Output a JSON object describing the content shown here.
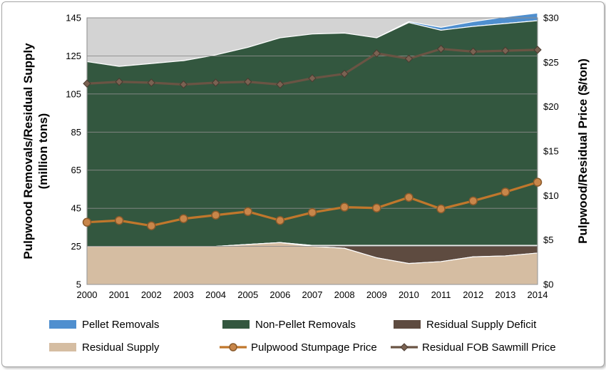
{
  "chart_data": {
    "type": "area",
    "x": [
      2000,
      2001,
      2002,
      2003,
      2004,
      2005,
      2006,
      2007,
      2008,
      2009,
      2010,
      2011,
      2012,
      2013,
      2014
    ],
    "x_tick_labels": [
      "2000",
      "2001",
      "2002",
      "2003",
      "2004",
      "2005",
      "2006",
      "2007",
      "2008",
      "2009",
      "2010",
      "2011",
      "2012",
      "2013",
      "2014"
    ],
    "ylabel": "Pulpwood Removals/Residual Supply (million tons)",
    "ylim": [
      5,
      145
    ],
    "y_ticks": [
      5,
      25,
      45,
      65,
      85,
      105,
      125,
      145
    ],
    "y_tick_labels": [
      "5",
      "25",
      "45",
      "65",
      "85",
      "105",
      "125",
      "145"
    ],
    "y2label": "Pulpwood/Residual Price ($/ton)",
    "y2lim": [
      0,
      30
    ],
    "y2_ticks": [
      0,
      5,
      10,
      15,
      20,
      25,
      30
    ],
    "y2_tick_labels": [
      "$0",
      "$5",
      "$10",
      "$15",
      "$20",
      "$25",
      "$30"
    ],
    "grid": true,
    "legend_position": "bottom",
    "colors": {
      "plot_background": "#d3d3d3",
      "pellet_removals": "#4f8fcf",
      "non_pellet_removals": "#33573f",
      "residual_supply_deficit": "#5e4b40",
      "residual_supply": "#d5bda2",
      "pulpwood_stumpage_price": "#c0772c",
      "pulpwood_marker": "#c8864a",
      "residual_fob_price": "#6a5444"
    },
    "series": [
      {
        "name": "Pellet Removals",
        "type": "area",
        "axis": "left",
        "values": [
          0,
          0,
          0,
          0,
          0,
          0,
          0,
          0,
          0,
          0,
          0.5,
          1.5,
          2.5,
          3.5,
          4.0
        ]
      },
      {
        "name": "Non-Pellet Removals",
        "type": "area",
        "axis": "left",
        "values": [
          97,
          94.5,
          96,
          97.5,
          100.5,
          103.5,
          107.5,
          111,
          111.5,
          109,
          117,
          113,
          115,
          116.5,
          118
        ]
      },
      {
        "name": "Residual Supply Deficit",
        "type": "area",
        "axis": "left",
        "values": [
          0,
          0,
          0,
          0,
          0,
          0,
          0,
          0.5,
          1.5,
          6.5,
          9.5,
          8.5,
          6.0,
          5.5,
          4.0
        ]
      },
      {
        "name": "Residual Supply",
        "type": "area",
        "axis": "left",
        "values": [
          25,
          25,
          25,
          25,
          25,
          26,
          27,
          25,
          24,
          19,
          16,
          17,
          19.5,
          20,
          21.5
        ]
      },
      {
        "name": "Pulpwood Stumpage Price",
        "type": "line",
        "axis": "right",
        "values": [
          7.0,
          7.2,
          6.6,
          7.4,
          7.8,
          8.2,
          7.2,
          8.1,
          8.7,
          8.6,
          9.8,
          8.5,
          9.4,
          10.4,
          11.5
        ]
      },
      {
        "name": "Residual FOB Sawmill Price",
        "type": "line",
        "axis": "right",
        "values": [
          22.6,
          22.8,
          22.7,
          22.5,
          22.7,
          22.8,
          22.5,
          23.2,
          23.7,
          26.0,
          25.4,
          26.5,
          26.2,
          26.3,
          26.4
        ]
      }
    ]
  }
}
